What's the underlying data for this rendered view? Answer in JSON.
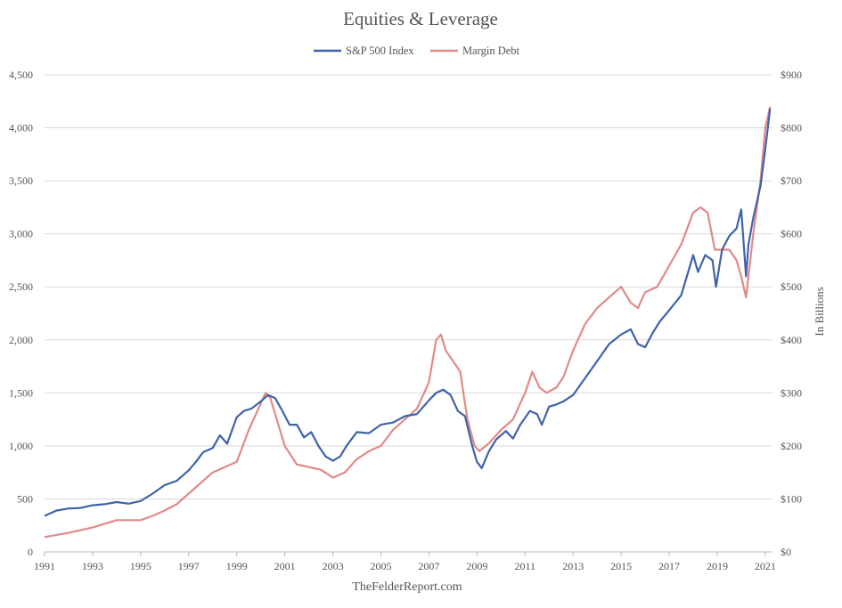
{
  "chart_data": {
    "type": "line",
    "title": "Equities & Leverage",
    "legend_position": "top-center",
    "source": "TheFelderReport.com",
    "xlabel": "",
    "xlim": [
      1991,
      2021.3
    ],
    "x_ticks": [
      "1991",
      "1993",
      "1995",
      "1997",
      "1999",
      "2001",
      "2003",
      "2005",
      "2007",
      "2009",
      "2011",
      "2013",
      "2015",
      "2017",
      "2019",
      "2021"
    ],
    "y_left": {
      "label": "",
      "lim": [
        0,
        4500
      ],
      "ticks": [
        "0",
        "500",
        "1,000",
        "1,500",
        "2,000",
        "2,500",
        "3,000",
        "3,500",
        "4,000",
        "4,500"
      ]
    },
    "y_right": {
      "label": "In Billions",
      "lim": [
        0,
        900
      ],
      "ticks": [
        "$0",
        "$100",
        "$200",
        "$300",
        "$400",
        "$500",
        "$600",
        "$700",
        "$800",
        "$900"
      ]
    },
    "grid": true,
    "series": [
      {
        "name": "S&P 500 Index",
        "axis": "left",
        "color": "#3f63a8",
        "x": [
          1991.0,
          1991.5,
          1992.0,
          1992.5,
          1993.0,
          1993.5,
          1994.0,
          1994.5,
          1995.0,
          1995.5,
          1996.0,
          1996.5,
          1997.0,
          1997.3,
          1997.6,
          1998.0,
          1998.3,
          1998.6,
          1999.0,
          1999.3,
          1999.6,
          2000.0,
          2000.3,
          2000.6,
          2000.9,
          2001.2,
          2001.5,
          2001.8,
          2002.1,
          2002.4,
          2002.7,
          2003.0,
          2003.3,
          2003.6,
          2004.0,
          2004.5,
          2005.0,
          2005.5,
          2006.0,
          2006.5,
          2007.0,
          2007.3,
          2007.6,
          2007.9,
          2008.2,
          2008.5,
          2008.8,
          2009.0,
          2009.2,
          2009.5,
          2009.8,
          2010.2,
          2010.5,
          2010.8,
          2011.2,
          2011.5,
          2011.7,
          2012.0,
          2012.3,
          2012.6,
          2013.0,
          2013.5,
          2014.0,
          2014.5,
          2015.0,
          2015.4,
          2015.7,
          2016.0,
          2016.3,
          2016.6,
          2017.0,
          2017.5,
          2018.0,
          2018.2,
          2018.5,
          2018.8,
          2018.95,
          2019.2,
          2019.5,
          2019.8,
          2020.0,
          2020.2,
          2020.3,
          2020.5,
          2020.8,
          2021.0,
          2021.2
        ],
        "values": [
          340,
          390,
          410,
          415,
          440,
          450,
          470,
          455,
          480,
          550,
          630,
          670,
          770,
          850,
          940,
          980,
          1100,
          1020,
          1270,
          1330,
          1350,
          1420,
          1480,
          1450,
          1330,
          1200,
          1200,
          1080,
          1130,
          1000,
          900,
          860,
          900,
          1010,
          1130,
          1120,
          1200,
          1220,
          1280,
          1300,
          1430,
          1500,
          1530,
          1480,
          1330,
          1280,
          1000,
          850,
          790,
          950,
          1060,
          1140,
          1070,
          1200,
          1330,
          1300,
          1200,
          1370,
          1390,
          1420,
          1480,
          1640,
          1800,
          1960,
          2050,
          2100,
          1960,
          1930,
          2060,
          2170,
          2280,
          2420,
          2800,
          2640,
          2800,
          2750,
          2500,
          2850,
          2980,
          3050,
          3230,
          2600,
          2900,
          3150,
          3450,
          3800,
          4180
        ]
      },
      {
        "name": "Margin Debt",
        "axis": "right",
        "color": "#e08a88",
        "x": [
          1991.0,
          1992.0,
          1993.0,
          1994.0,
          1995.0,
          1995.5,
          1996.0,
          1996.5,
          1997.0,
          1997.5,
          1998.0,
          1998.5,
          1999.0,
          1999.5,
          2000.0,
          2000.2,
          2000.4,
          2000.7,
          2001.0,
          2001.5,
          2002.0,
          2002.5,
          2003.0,
          2003.5,
          2004.0,
          2004.5,
          2005.0,
          2005.5,
          2006.0,
          2006.5,
          2007.0,
          2007.3,
          2007.5,
          2007.7,
          2008.0,
          2008.3,
          2008.6,
          2008.9,
          2009.1,
          2009.5,
          2010.0,
          2010.5,
          2011.0,
          2011.3,
          2011.6,
          2011.9,
          2012.3,
          2012.6,
          2013.0,
          2013.5,
          2014.0,
          2014.5,
          2015.0,
          2015.4,
          2015.7,
          2016.0,
          2016.5,
          2017.0,
          2017.5,
          2018.0,
          2018.3,
          2018.6,
          2018.9,
          2019.2,
          2019.5,
          2019.8,
          2020.0,
          2020.2,
          2020.5,
          2020.8,
          2021.0,
          2021.2
        ],
        "values": [
          28,
          36,
          46,
          60,
          60,
          68,
          78,
          90,
          110,
          130,
          150,
          160,
          170,
          230,
          280,
          300,
          290,
          245,
          200,
          165,
          160,
          155,
          140,
          150,
          175,
          190,
          200,
          230,
          250,
          270,
          320,
          400,
          410,
          380,
          360,
          340,
          250,
          200,
          190,
          205,
          230,
          250,
          300,
          340,
          310,
          300,
          310,
          330,
          380,
          430,
          460,
          480,
          500,
          470,
          460,
          490,
          500,
          540,
          580,
          640,
          650,
          640,
          570,
          570,
          570,
          550,
          520,
          480,
          600,
          700,
          800,
          840
        ]
      }
    ]
  }
}
